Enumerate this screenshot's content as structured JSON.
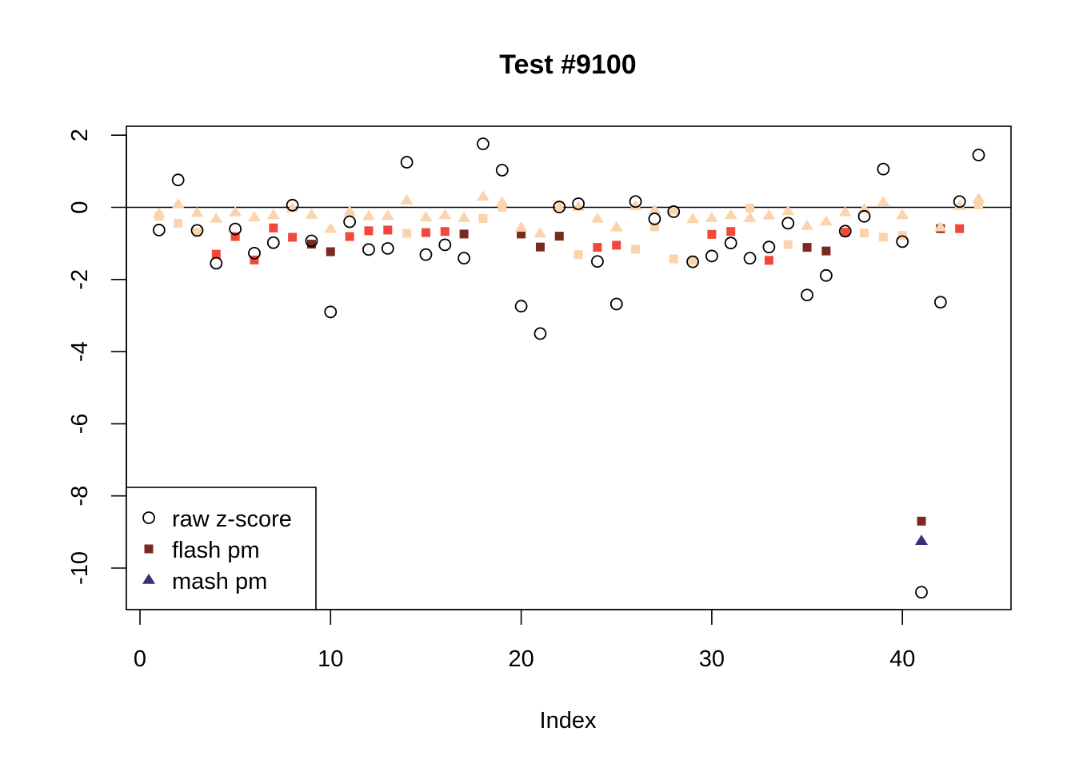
{
  "chart_data": {
    "type": "scatter",
    "title": "Test #9100",
    "xlabel": "Index",
    "ylabel": "",
    "xlim": [
      0,
      44
    ],
    "ylim": [
      -11,
      2
    ],
    "x_ticks": [
      "0",
      "10",
      "20",
      "30",
      "40"
    ],
    "y_ticks": [
      "2",
      "0",
      "-2",
      "-4",
      "-6",
      "-8",
      "-10"
    ],
    "reference_line_y": 0,
    "grid": false,
    "legend_position": "bottom-left",
    "legend": [
      {
        "label": "raw z-score",
        "symbol": "open-circle",
        "color": "#000000"
      },
      {
        "label": "flash pm",
        "symbol": "square",
        "color": "#7a2a1e"
      },
      {
        "label": "mash pm",
        "symbol": "triangle",
        "color": "#3a2d7c"
      }
    ],
    "colors": {
      "flash_dark": "#7a2a1e",
      "flash_red": "#f2473a",
      "flash_light": "#fbd3ad",
      "mash_light": "#fbd3ad",
      "mash_dark": "#3a2d7c"
    },
    "series": [
      {
        "name": "raw z-score",
        "symbol": "open-circle",
        "x": [
          1,
          2,
          3,
          4,
          5,
          6,
          7,
          8,
          9,
          10,
          11,
          12,
          13,
          14,
          15,
          16,
          17,
          18,
          19,
          20,
          21,
          22,
          23,
          24,
          25,
          26,
          27,
          28,
          29,
          30,
          31,
          32,
          33,
          34,
          35,
          36,
          37,
          38,
          39,
          40,
          41,
          42,
          43,
          44
        ],
        "y": [
          -0.63,
          0.76,
          -0.64,
          -1.55,
          -0.6,
          -1.27,
          -0.98,
          0.06,
          -0.93,
          -2.9,
          -0.4,
          -1.17,
          -1.14,
          1.25,
          -1.31,
          -1.04,
          -1.41,
          1.76,
          1.03,
          -2.74,
          -3.5,
          0.01,
          0.1,
          -1.5,
          -2.68,
          0.16,
          -0.32,
          -0.12,
          -1.51,
          -1.35,
          -0.99,
          -1.41,
          -1.1,
          -0.44,
          -2.43,
          -1.89,
          -0.66,
          -0.25,
          1.06,
          -0.95,
          -10.67,
          -2.63,
          0.16,
          1.45
        ]
      },
      {
        "name": "flash pm",
        "symbol": "square",
        "x": [
          1,
          2,
          3,
          4,
          5,
          6,
          7,
          8,
          9,
          10,
          11,
          12,
          13,
          14,
          15,
          16,
          17,
          18,
          19,
          20,
          21,
          22,
          23,
          24,
          25,
          26,
          27,
          28,
          29,
          30,
          31,
          32,
          33,
          34,
          35,
          36,
          37,
          38,
          39,
          40,
          41,
          42,
          43,
          44
        ],
        "y": [
          -0.25,
          -0.44,
          -0.69,
          -1.3,
          -0.81,
          -1.46,
          -0.57,
          -0.83,
          -1.02,
          -1.23,
          -0.81,
          -0.65,
          -0.63,
          -0.72,
          -0.7,
          -0.67,
          -0.74,
          -0.31,
          0,
          -0.74,
          -1.1,
          -0.8,
          -1.31,
          -1.11,
          -1.05,
          -1.16,
          -0.54,
          -1.43,
          -1.47,
          -0.75,
          -0.67,
          -0.02,
          -1.47,
          -1.03,
          -1.11,
          -1.21,
          -0.69,
          -0.71,
          -0.83,
          -0.78,
          -8.7,
          -0.59,
          -0.59,
          0.07
        ],
        "color_level": [
          "light",
          "light",
          "light",
          "red",
          "red",
          "red",
          "red",
          "red",
          "dark",
          "dark",
          "red",
          "red",
          "red",
          "light",
          "red",
          "red",
          "dark",
          "light",
          "light",
          "dark",
          "dark",
          "dark",
          "light",
          "red",
          "red",
          "light",
          "light",
          "light",
          "light",
          "red",
          "red",
          "light",
          "red",
          "light",
          "dark",
          "dark",
          "red",
          "light",
          "light",
          "light",
          "dark",
          "dark",
          "red",
          "light"
        ]
      },
      {
        "name": "mash pm",
        "symbol": "triangle",
        "x": [
          1,
          2,
          3,
          4,
          5,
          6,
          7,
          8,
          9,
          10,
          11,
          12,
          13,
          14,
          15,
          16,
          17,
          18,
          19,
          20,
          21,
          22,
          23,
          24,
          25,
          26,
          27,
          28,
          29,
          30,
          31,
          32,
          33,
          34,
          35,
          36,
          37,
          38,
          39,
          40,
          41,
          42,
          43,
          44
        ],
        "y": [
          -0.18,
          0.08,
          -0.16,
          -0.32,
          -0.14,
          -0.28,
          -0.22,
          -0.03,
          -0.21,
          -0.6,
          -0.12,
          -0.25,
          -0.24,
          0.19,
          -0.28,
          -0.22,
          -0.3,
          0.29,
          0.13,
          -0.57,
          -0.73,
          0.01,
          0.01,
          -0.32,
          -0.56,
          0.03,
          -0.08,
          -0.09,
          -0.33,
          -0.3,
          -0.22,
          -0.3,
          -0.23,
          -0.11,
          -0.52,
          -0.4,
          -0.14,
          -0.05,
          0.14,
          -0.22,
          -9.25,
          -0.56,
          0.03,
          0.23
        ],
        "color_level": [
          "light",
          "light",
          "light",
          "light",
          "light",
          "light",
          "light",
          "light",
          "light",
          "light",
          "light",
          "light",
          "light",
          "light",
          "light",
          "light",
          "light",
          "light",
          "light",
          "light",
          "light",
          "light",
          "light",
          "light",
          "light",
          "light",
          "light",
          "light",
          "light",
          "light",
          "light",
          "light",
          "light",
          "light",
          "light",
          "light",
          "light",
          "light",
          "light",
          "light",
          "dark",
          "light",
          "light",
          "light"
        ]
      }
    ]
  }
}
